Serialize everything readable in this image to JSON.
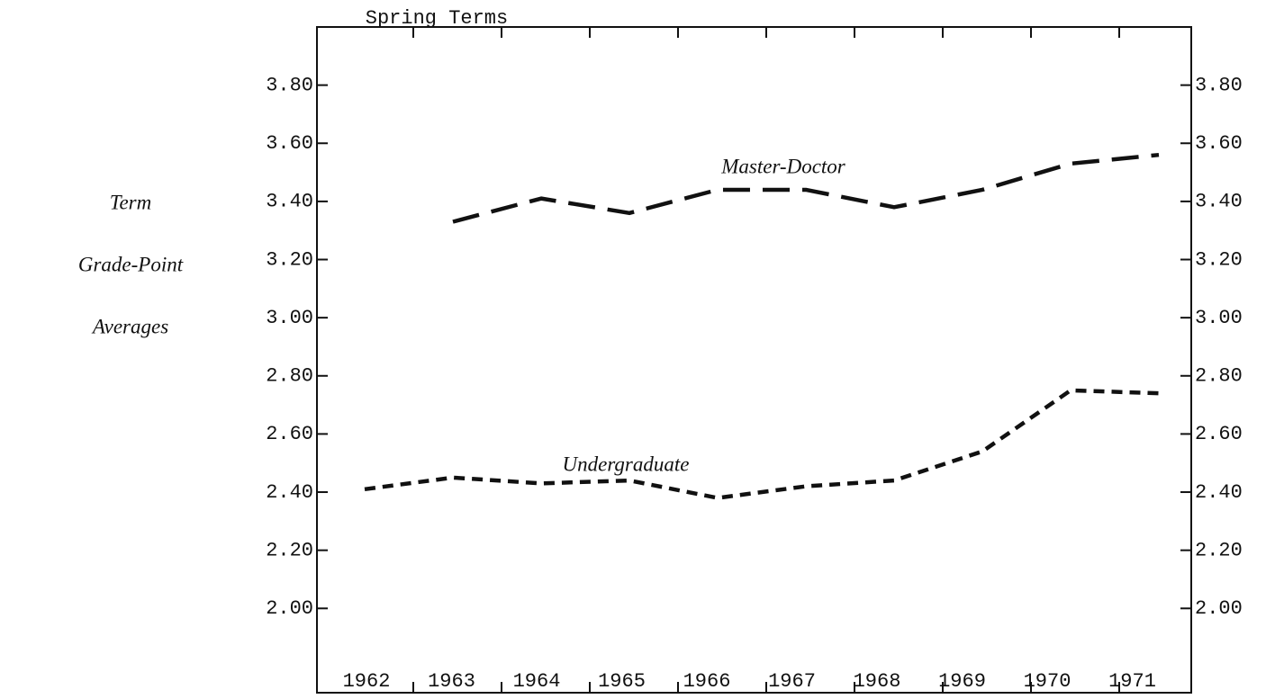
{
  "chart_data": {
    "type": "line",
    "title": "Spring Terms",
    "y_label_lines": [
      "Term",
      "Grade-Point",
      "Averages"
    ],
    "categories": [
      "1962",
      "1963",
      "1964",
      "1965",
      "1966",
      "1967",
      "1968",
      "1969",
      "1970",
      "1971"
    ],
    "series": [
      {
        "name": "Master-Doctor",
        "color": "#111111",
        "dash": "30 14",
        "values": [
          null,
          3.33,
          3.41,
          3.36,
          3.44,
          3.44,
          3.38,
          3.44,
          3.53,
          3.56
        ]
      },
      {
        "name": "Undergraduate",
        "color": "#111111",
        "dash": "12 8",
        "values": [
          2.41,
          2.45,
          2.43,
          2.44,
          2.38,
          2.42,
          2.44,
          2.54,
          2.75,
          2.74
        ]
      }
    ],
    "ylim": [
      1.71,
      4.0
    ],
    "yticks": [
      {
        "value": 2.0,
        "label": "2.00"
      },
      {
        "value": 2.2,
        "label": "2.20"
      },
      {
        "value": 2.4,
        "label": "2.40"
      },
      {
        "value": 2.6,
        "label": "2.60"
      },
      {
        "value": 2.8,
        "label": "2.80"
      },
      {
        "value": 3.0,
        "label": "3.00"
      },
      {
        "value": 3.2,
        "label": "3.20"
      },
      {
        "value": 3.4,
        "label": "3.40"
      },
      {
        "value": 3.6,
        "label": "3.60"
      },
      {
        "value": 3.8,
        "label": "3.80"
      }
    ],
    "grid": false
  }
}
